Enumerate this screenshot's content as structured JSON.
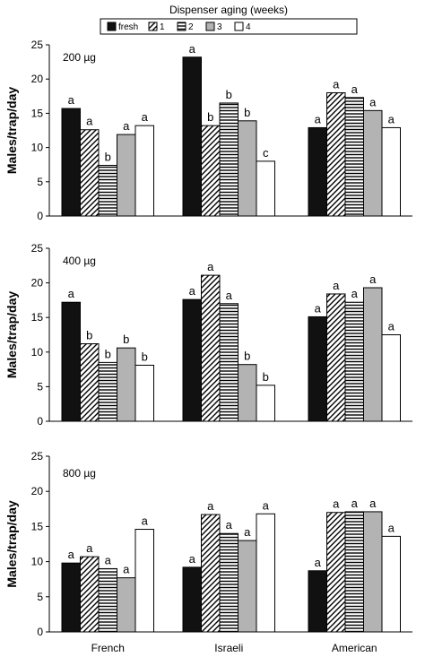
{
  "legend": {
    "title": "Dispenser aging  (weeks)",
    "entries": [
      {
        "label": "fresh",
        "pattern": "solid-black"
      },
      {
        "label": "1",
        "pattern": "diagonal-hatch"
      },
      {
        "label": "2",
        "pattern": "horizontal-lines"
      },
      {
        "label": "3",
        "pattern": "solid-gray"
      },
      {
        "label": "4",
        "pattern": "white"
      }
    ]
  },
  "colors": {
    "fresh": "#111111",
    "gray": "#b3b3b3",
    "white": "#ffffff",
    "stroke": "#000000"
  },
  "chart_data": [
    {
      "type": "bar",
      "panel_label": "200 µg",
      "ylabel": "Males/trap/day",
      "ylim": [
        0,
        25
      ],
      "yticks": [
        0,
        5,
        10,
        15,
        20,
        25
      ],
      "categories": [
        "French",
        "Israeli",
        "American"
      ],
      "series": [
        {
          "name": "fresh",
          "values": [
            15.7,
            23.2,
            12.9
          ],
          "letters": [
            "a",
            "a",
            "a"
          ]
        },
        {
          "name": "1",
          "values": [
            12.6,
            13.2,
            18.0
          ],
          "letters": [
            "a",
            "b",
            "a"
          ]
        },
        {
          "name": "2",
          "values": [
            7.4,
            16.5,
            17.3
          ],
          "letters": [
            "b",
            "b",
            "a"
          ]
        },
        {
          "name": "3",
          "values": [
            11.9,
            13.9,
            15.4
          ],
          "letters": [
            "a",
            "b",
            "a"
          ]
        },
        {
          "name": "4",
          "values": [
            13.2,
            8.0,
            12.9
          ],
          "letters": [
            "a",
            "c",
            "a"
          ]
        }
      ]
    },
    {
      "type": "bar",
      "panel_label": "400 µg",
      "ylabel": "Males/trap/day",
      "ylim": [
        0,
        25
      ],
      "yticks": [
        0,
        5,
        10,
        15,
        20,
        25
      ],
      "categories": [
        "French",
        "Israeli",
        "American"
      ],
      "series": [
        {
          "name": "fresh",
          "values": [
            17.2,
            17.6,
            15.1
          ],
          "letters": [
            "a",
            "a",
            "a"
          ]
        },
        {
          "name": "1",
          "values": [
            11.2,
            21.1,
            18.4
          ],
          "letters": [
            "b",
            "a",
            "a"
          ]
        },
        {
          "name": "2",
          "values": [
            8.5,
            17.0,
            17.2
          ],
          "letters": [
            "b",
            "a",
            "a"
          ]
        },
        {
          "name": "3",
          "values": [
            10.6,
            8.2,
            19.3
          ],
          "letters": [
            "b",
            "b",
            "a"
          ]
        },
        {
          "name": "4",
          "values": [
            8.1,
            5.2,
            12.5
          ],
          "letters": [
            "b",
            "b",
            "a"
          ]
        }
      ]
    },
    {
      "type": "bar",
      "panel_label": "800 µg",
      "ylabel": "Males/trap/day",
      "ylim": [
        0,
        25
      ],
      "yticks": [
        0,
        5,
        10,
        15,
        20,
        25
      ],
      "categories": [
        "French",
        "Israeli",
        "American"
      ],
      "series": [
        {
          "name": "fresh",
          "values": [
            9.8,
            9.2,
            8.7
          ],
          "letters": [
            "a",
            "a",
            "a"
          ]
        },
        {
          "name": "1",
          "values": [
            10.7,
            16.7,
            17.0
          ],
          "letters": [
            "a",
            "a",
            "a"
          ]
        },
        {
          "name": "2",
          "values": [
            9.0,
            14.0,
            17.1
          ],
          "letters": [
            "a",
            "a",
            "a"
          ]
        },
        {
          "name": "3",
          "values": [
            7.7,
            13.0,
            17.1
          ],
          "letters": [
            "a",
            "a",
            "a"
          ]
        },
        {
          "name": "4",
          "values": [
            14.6,
            16.8,
            13.6
          ],
          "letters": [
            "a",
            "a",
            "a"
          ]
        }
      ]
    }
  ]
}
